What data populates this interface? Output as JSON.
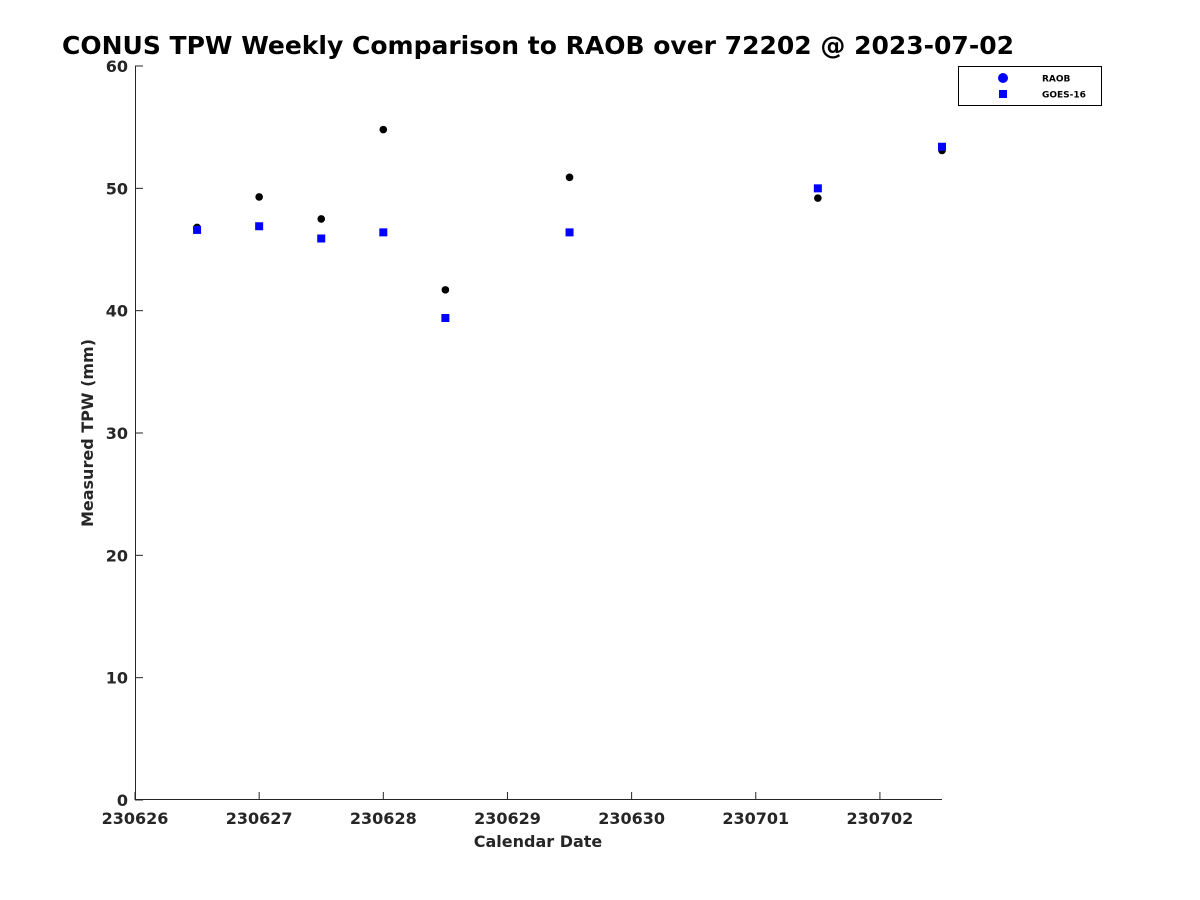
{
  "chart_data": {
    "type": "scatter",
    "title": "CONUS TPW Weekly Comparison to RAOB over 72202 @ 2023-07-02",
    "xlabel": "Calendar Date",
    "ylabel": "Measured TPW (mm)",
    "xlim": [
      "2023-06-26T00:00",
      "2023-07-02T12:00"
    ],
    "ylim": [
      0,
      60
    ],
    "x_ticks": [
      "2023-06-26T00:00",
      "2023-06-27T00:00",
      "2023-06-28T00:00",
      "2023-06-29T00:00",
      "2023-06-30T00:00",
      "2023-07-01T00:00",
      "2023-07-02T00:00"
    ],
    "x_tick_labels": [
      "230626",
      "230627",
      "230628",
      "230629",
      "230630",
      "230701",
      "230702"
    ],
    "y_ticks": [
      0,
      10,
      20,
      30,
      40,
      50,
      60
    ],
    "y_tick_labels": [
      "0",
      "10",
      "20",
      "30",
      "40",
      "50",
      "60"
    ],
    "grid": false,
    "legend_position": "top-right",
    "series": [
      {
        "name": "RAOB",
        "marker": "circle",
        "legend_color": "#0000ff",
        "color": "#000000",
        "x": [
          "2023-06-26T12:00",
          "2023-06-27T00:00",
          "2023-06-27T12:00",
          "2023-06-28T00:00",
          "2023-06-28T12:00",
          "2023-06-29T12:00",
          "2023-07-01T12:00",
          "2023-07-02T12:00"
        ],
        "y": [
          46.8,
          49.3,
          47.5,
          54.8,
          41.7,
          50.9,
          49.2,
          53.1
        ]
      },
      {
        "name": "GOES-16",
        "marker": "square",
        "legend_color": "#0000ff",
        "color": "#0000ff",
        "x": [
          "2023-06-26T12:00",
          "2023-06-27T00:00",
          "2023-06-27T12:00",
          "2023-06-28T00:00",
          "2023-06-28T12:00",
          "2023-06-29T12:00",
          "2023-07-01T12:00",
          "2023-07-02T12:00"
        ],
        "y": [
          46.6,
          46.9,
          45.9,
          46.4,
          39.4,
          46.4,
          50.0,
          53.4
        ]
      }
    ]
  }
}
